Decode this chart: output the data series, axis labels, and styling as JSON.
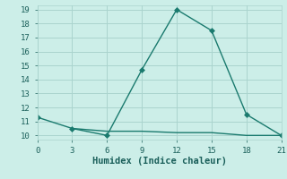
{
  "x": [
    0,
    3,
    6,
    9,
    12,
    15,
    18,
    21
  ],
  "y_main": [
    11.3,
    10.5,
    10.0,
    14.7,
    19.0,
    17.5,
    11.5,
    10.0
  ],
  "y_flat": [
    3,
    6,
    9,
    12,
    15,
    18,
    21
  ],
  "y_flat_vals": [
    10.5,
    10.3,
    10.3,
    10.2,
    10.2,
    10.0,
    10.0
  ],
  "line_color": "#1a7a6e",
  "bg_color": "#cceee8",
  "grid_color": "#aad4ce",
  "xlabel": "Humidex (Indice chaleur)",
  "xlim": [
    0,
    21
  ],
  "ylim": [
    9.7,
    19.3
  ],
  "yticks": [
    10,
    11,
    12,
    13,
    14,
    15,
    16,
    17,
    18,
    19
  ],
  "xticks": [
    0,
    3,
    6,
    9,
    12,
    15,
    18,
    21
  ],
  "markersize": 3,
  "linewidth": 1.0,
  "font_color": "#1a5f5a",
  "tick_fontsize": 6.5,
  "label_fontsize": 7.5
}
